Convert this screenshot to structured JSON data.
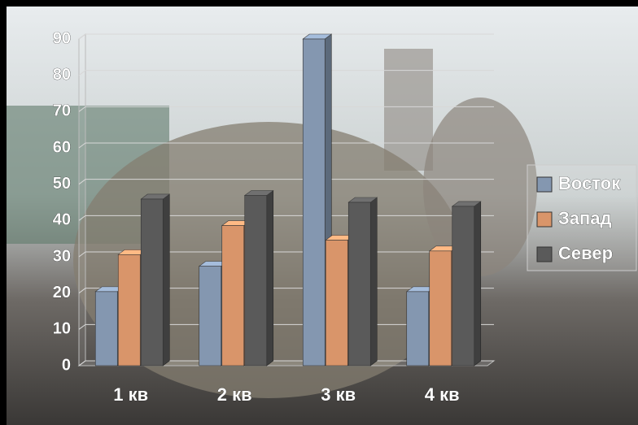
{
  "chart_data": {
    "type": "bar3d",
    "categories": [
      "1 кв",
      "2 кв",
      "3 кв",
      "4 кв"
    ],
    "series": [
      {
        "name": "Восток",
        "color": "#8497b0",
        "values": [
          20.4,
          27.4,
          90,
          20.4
        ]
      },
      {
        "name": "Запад",
        "color": "#d9956a",
        "values": [
          30.6,
          38.6,
          34.6,
          31.6
        ]
      },
      {
        "name": "Север",
        "color": "#5a5a5a",
        "values": [
          45.9,
          46.9,
          45,
          43.9
        ]
      }
    ],
    "ylim": [
      0,
      90
    ],
    "yticks": [
      0,
      10,
      20,
      30,
      40,
      50,
      60,
      70,
      80,
      90
    ],
    "grid": true,
    "legend": "right"
  }
}
